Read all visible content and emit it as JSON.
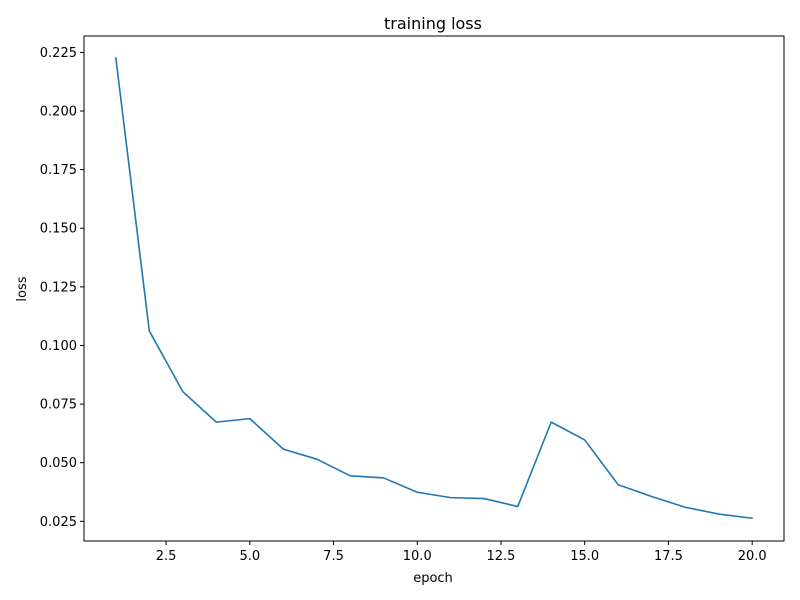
{
  "chart_data": {
    "type": "line",
    "title": "training loss",
    "xlabel": "epoch",
    "ylabel": "loss",
    "xlim": [
      0.05,
      20.95
    ],
    "ylim": [
      0.0166,
      0.232
    ],
    "x_ticks": [
      2.5,
      5.0,
      7.5,
      10.0,
      12.5,
      15.0,
      17.5,
      20.0
    ],
    "x_tick_labels": [
      "2.5",
      "5.0",
      "7.5",
      "10.0",
      "12.5",
      "15.0",
      "17.5",
      "20.0"
    ],
    "y_ticks": [
      0.025,
      0.05,
      0.075,
      0.1,
      0.125,
      0.15,
      0.175,
      0.2,
      0.225
    ],
    "y_tick_labels": [
      "0.025",
      "0.050",
      "0.075",
      "0.100",
      "0.125",
      "0.150",
      "0.175",
      "0.200",
      "0.225"
    ],
    "grid": false,
    "series": [
      {
        "color": "#1f77b4",
        "x": [
          1,
          2,
          3,
          4,
          5,
          6,
          7,
          8,
          9,
          10,
          11,
          12,
          13,
          14,
          15,
          16,
          17,
          18,
          19,
          20
        ],
        "y": [
          0.2227,
          0.1062,
          0.0803,
          0.0673,
          0.0688,
          0.0558,
          0.0515,
          0.0444,
          0.0435,
          0.0374,
          0.0351,
          0.0347,
          0.0313,
          0.0673,
          0.0597,
          0.0406,
          0.0356,
          0.031,
          0.0281,
          0.0263
        ]
      }
    ]
  }
}
